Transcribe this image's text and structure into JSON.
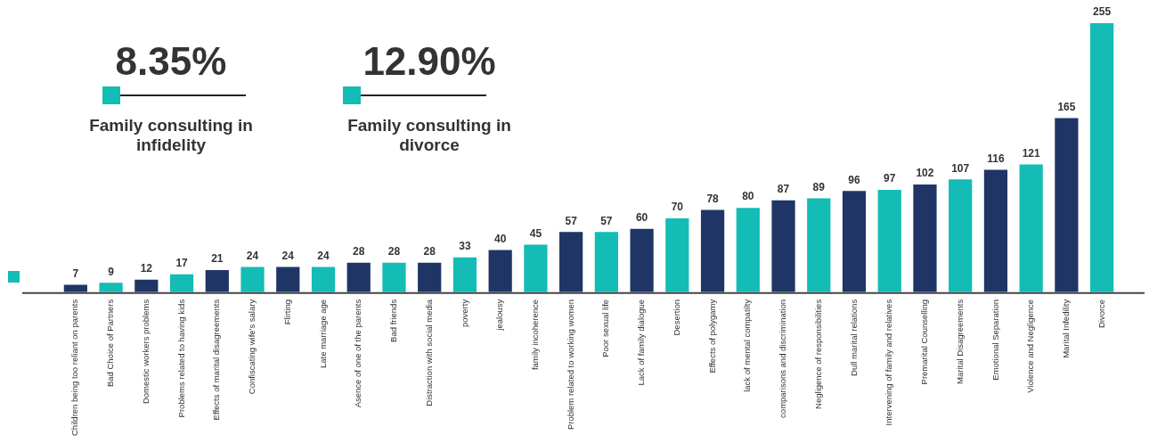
{
  "chart_data": {
    "type": "bar",
    "categories": [
      "Children being too reliant on parents",
      "Bad Choice of Partners",
      "Domestic workers problems",
      "Problems related to having kids",
      "Effects of marital disagreements",
      "Confiscating wife's salary",
      "Flirting",
      "Late marriage age",
      "Asence of one of the parents",
      "Bad friends",
      "Distraction with social media",
      "poverty",
      "jealousy",
      "family incoherence",
      "Problem related to working women",
      "Poor sexual life",
      "Lack of family dialogue",
      "Desertion",
      "Effects of polygamy",
      "lack of mental compatilty",
      "comparisons and discrimination",
      "Negligence of responsibilities",
      "Dull marital relations",
      "Intervening of family and relatives",
      "Premarital Counselling",
      "Marital Disagreements",
      "Emotional Separation",
      "Violence and Negligence",
      "Marital Infedility",
      "Divorce"
    ],
    "values": [
      7,
      9,
      12,
      17,
      21,
      24,
      24,
      24,
      28,
      28,
      28,
      33,
      40,
      45,
      57,
      57,
      60,
      70,
      78,
      80,
      87,
      89,
      96,
      97,
      102,
      107,
      116,
      121,
      165,
      255
    ],
    "colors": [
      "#1f3566",
      "#13bcb4",
      "#1f3566",
      "#13bcb4",
      "#1f3566",
      "#13bcb4",
      "#1f3566",
      "#13bcb4",
      "#1f3566",
      "#13bcb4",
      "#1f3566",
      "#13bcb4",
      "#1f3566",
      "#13bcb4",
      "#1f3566",
      "#13bcb4",
      "#1f3566",
      "#13bcb4",
      "#1f3566",
      "#13bcb4",
      "#1f3566",
      "#13bcb4",
      "#1f3566",
      "#13bcb4",
      "#1f3566",
      "#13bcb4",
      "#1f3566",
      "#13bcb4",
      "#1f3566",
      "#13bcb4"
    ],
    "data_labels": true,
    "grid": false,
    "legend": false,
    "annotations": [
      "8.35%",
      "Family consulting in infidelity",
      "12.90%",
      "Family consulting in divorce"
    ]
  }
}
